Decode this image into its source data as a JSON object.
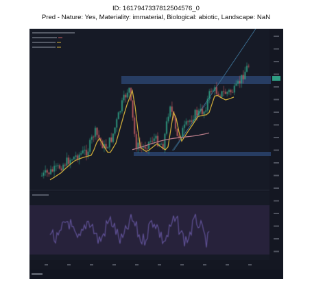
{
  "header": {
    "id_line": "ID: 1617947337812504576_0",
    "pred_line": "Pred - Nature: Yes, Materiality: immaterial, Biological: abiotic, Landscape: NaN"
  },
  "screenshot": {
    "description_hidden": "",
    "colors": {
      "panel_bg": "#141722",
      "band_blue": "#2d4a78",
      "ma_yellow": "#c9a83a",
      "ma_pink": "#b47a86",
      "trend_line": "#3a6a8c",
      "rsi_line": "#6a5aa8",
      "rsi_band": "#2a2440",
      "candle_up": "#2f9e84",
      "candle_down": "#c05a5e",
      "price_tag": "#2f9e84"
    },
    "icons": [
      "chart-logo-icon"
    ]
  }
}
